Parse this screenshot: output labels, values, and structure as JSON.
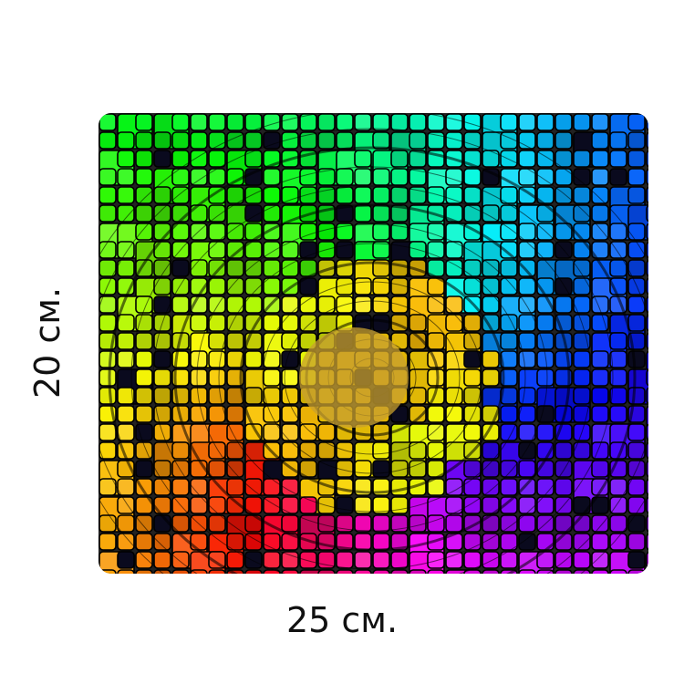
{
  "product": {
    "width_label": "25 см.",
    "height_label": "20 см.",
    "palette": [
      "#ff0000",
      "#ff4d00",
      "#ff8c00",
      "#ffd000",
      "#ffff00",
      "#9be000",
      "#33cc00",
      "#00aa44",
      "#00e0c0",
      "#1a7fff",
      "#1a1aff",
      "#4b0082",
      "#8a00e6",
      "#c000ff",
      "#ff1493",
      "#0a0a1e"
    ]
  }
}
